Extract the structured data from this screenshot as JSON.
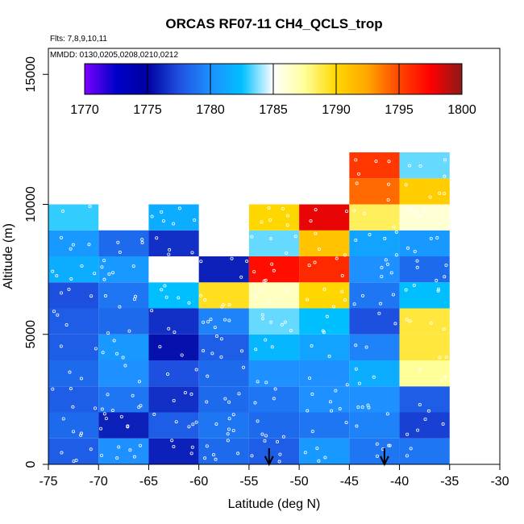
{
  "chart_data": {
    "type": "heatmap",
    "title": "ORCAS RF07-11 CH4_QCLS_trop",
    "flights_note": "Flts: 7,8,9,10,11",
    "dates_note": "MMDD: 0130,0205,0208,0210,0212",
    "xlabel": "Latitude (deg N)",
    "ylabel": "Altitude (m)",
    "xlim": [
      -75,
      -30
    ],
    "ylim": [
      0,
      16000
    ],
    "x_ticks": [
      "-75",
      "-70",
      "-65",
      "-60",
      "-55",
      "-50",
      "-45",
      "-40",
      "-35",
      "-30"
    ],
    "y_ticks": [
      "0",
      "5000",
      "10000",
      "15000"
    ],
    "colorbar": {
      "min": 1770,
      "max": 1800,
      "ticks": [
        "1770",
        "1775",
        "1780",
        "1785",
        "1790",
        "1795",
        "1800"
      ],
      "stops": [
        "#7b00ff",
        "#0000c8",
        "#0000a0",
        "#1e50e0",
        "#1e90ff",
        "#00bfff",
        "#ffffff",
        "#ffff99",
        "#ffd700",
        "#ffa500",
        "#ff4500",
        "#ff0000",
        "#8b1a1a"
      ]
    },
    "lat_bins": [
      -75,
      -70,
      -65,
      -60,
      -55,
      -50,
      -45,
      -40,
      -35
    ],
    "alt_bin_size": 1000,
    "columns": [
      {
        "lat": -75,
        "values": [
          1778.0,
          1778.5,
          1778.0,
          1778.5,
          1778.0,
          1778.0,
          1777.5,
          1781.5,
          1780.5,
          1783.0
        ]
      },
      {
        "lat": -70,
        "values": [
          1780.0,
          1776.0,
          1779.0,
          1780.0,
          1780.5,
          1778.5,
          1779.0,
          1780.5,
          1778.5
        ]
      },
      {
        "lat": -65,
        "values": [
          1776.0,
          1778.0,
          1776.5,
          1777.5,
          1775.5,
          1776.5,
          1782.5,
          1785.0,
          1776.5,
          1781.5
        ]
      },
      {
        "lat": -60,
        "values": [
          1778.5,
          1779.0,
          1778.5,
          1778.5,
          1778.0,
          1779.5,
          1789.5,
          1776.0
        ]
      },
      {
        "lat": -55,
        "values": [
          1778.0,
          1778.5,
          1779.0,
          1780.0,
          1782.0,
          1783.5,
          1786.5,
          1797.0,
          1783.5,
          1790.0
        ]
      },
      {
        "lat": -50,
        "values": [
          1780.5,
          1779.0,
          1780.0,
          1780.0,
          1781.0,
          1782.5,
          1790.0,
          1796.0,
          1791.0,
          1798.0
        ]
      },
      {
        "lat": -45,
        "values": [
          1779.0,
          1779.5,
          1780.0,
          1781.5,
          1779.5,
          1777.5,
          1779.0,
          1780.0,
          1781.0,
          1788.5,
          1794.0,
          1795.5
        ]
      },
      {
        "lat": -40,
        "values": [
          1779.0,
          1777.0,
          1778.0,
          1787.5,
          1789.0,
          1789.0,
          1782.5,
          1778.5,
          1780.5,
          1786.0,
          1790.5,
          1783.5
        ]
      }
    ],
    "arrows_at_lat": [
      -53,
      -41.5
    ]
  }
}
